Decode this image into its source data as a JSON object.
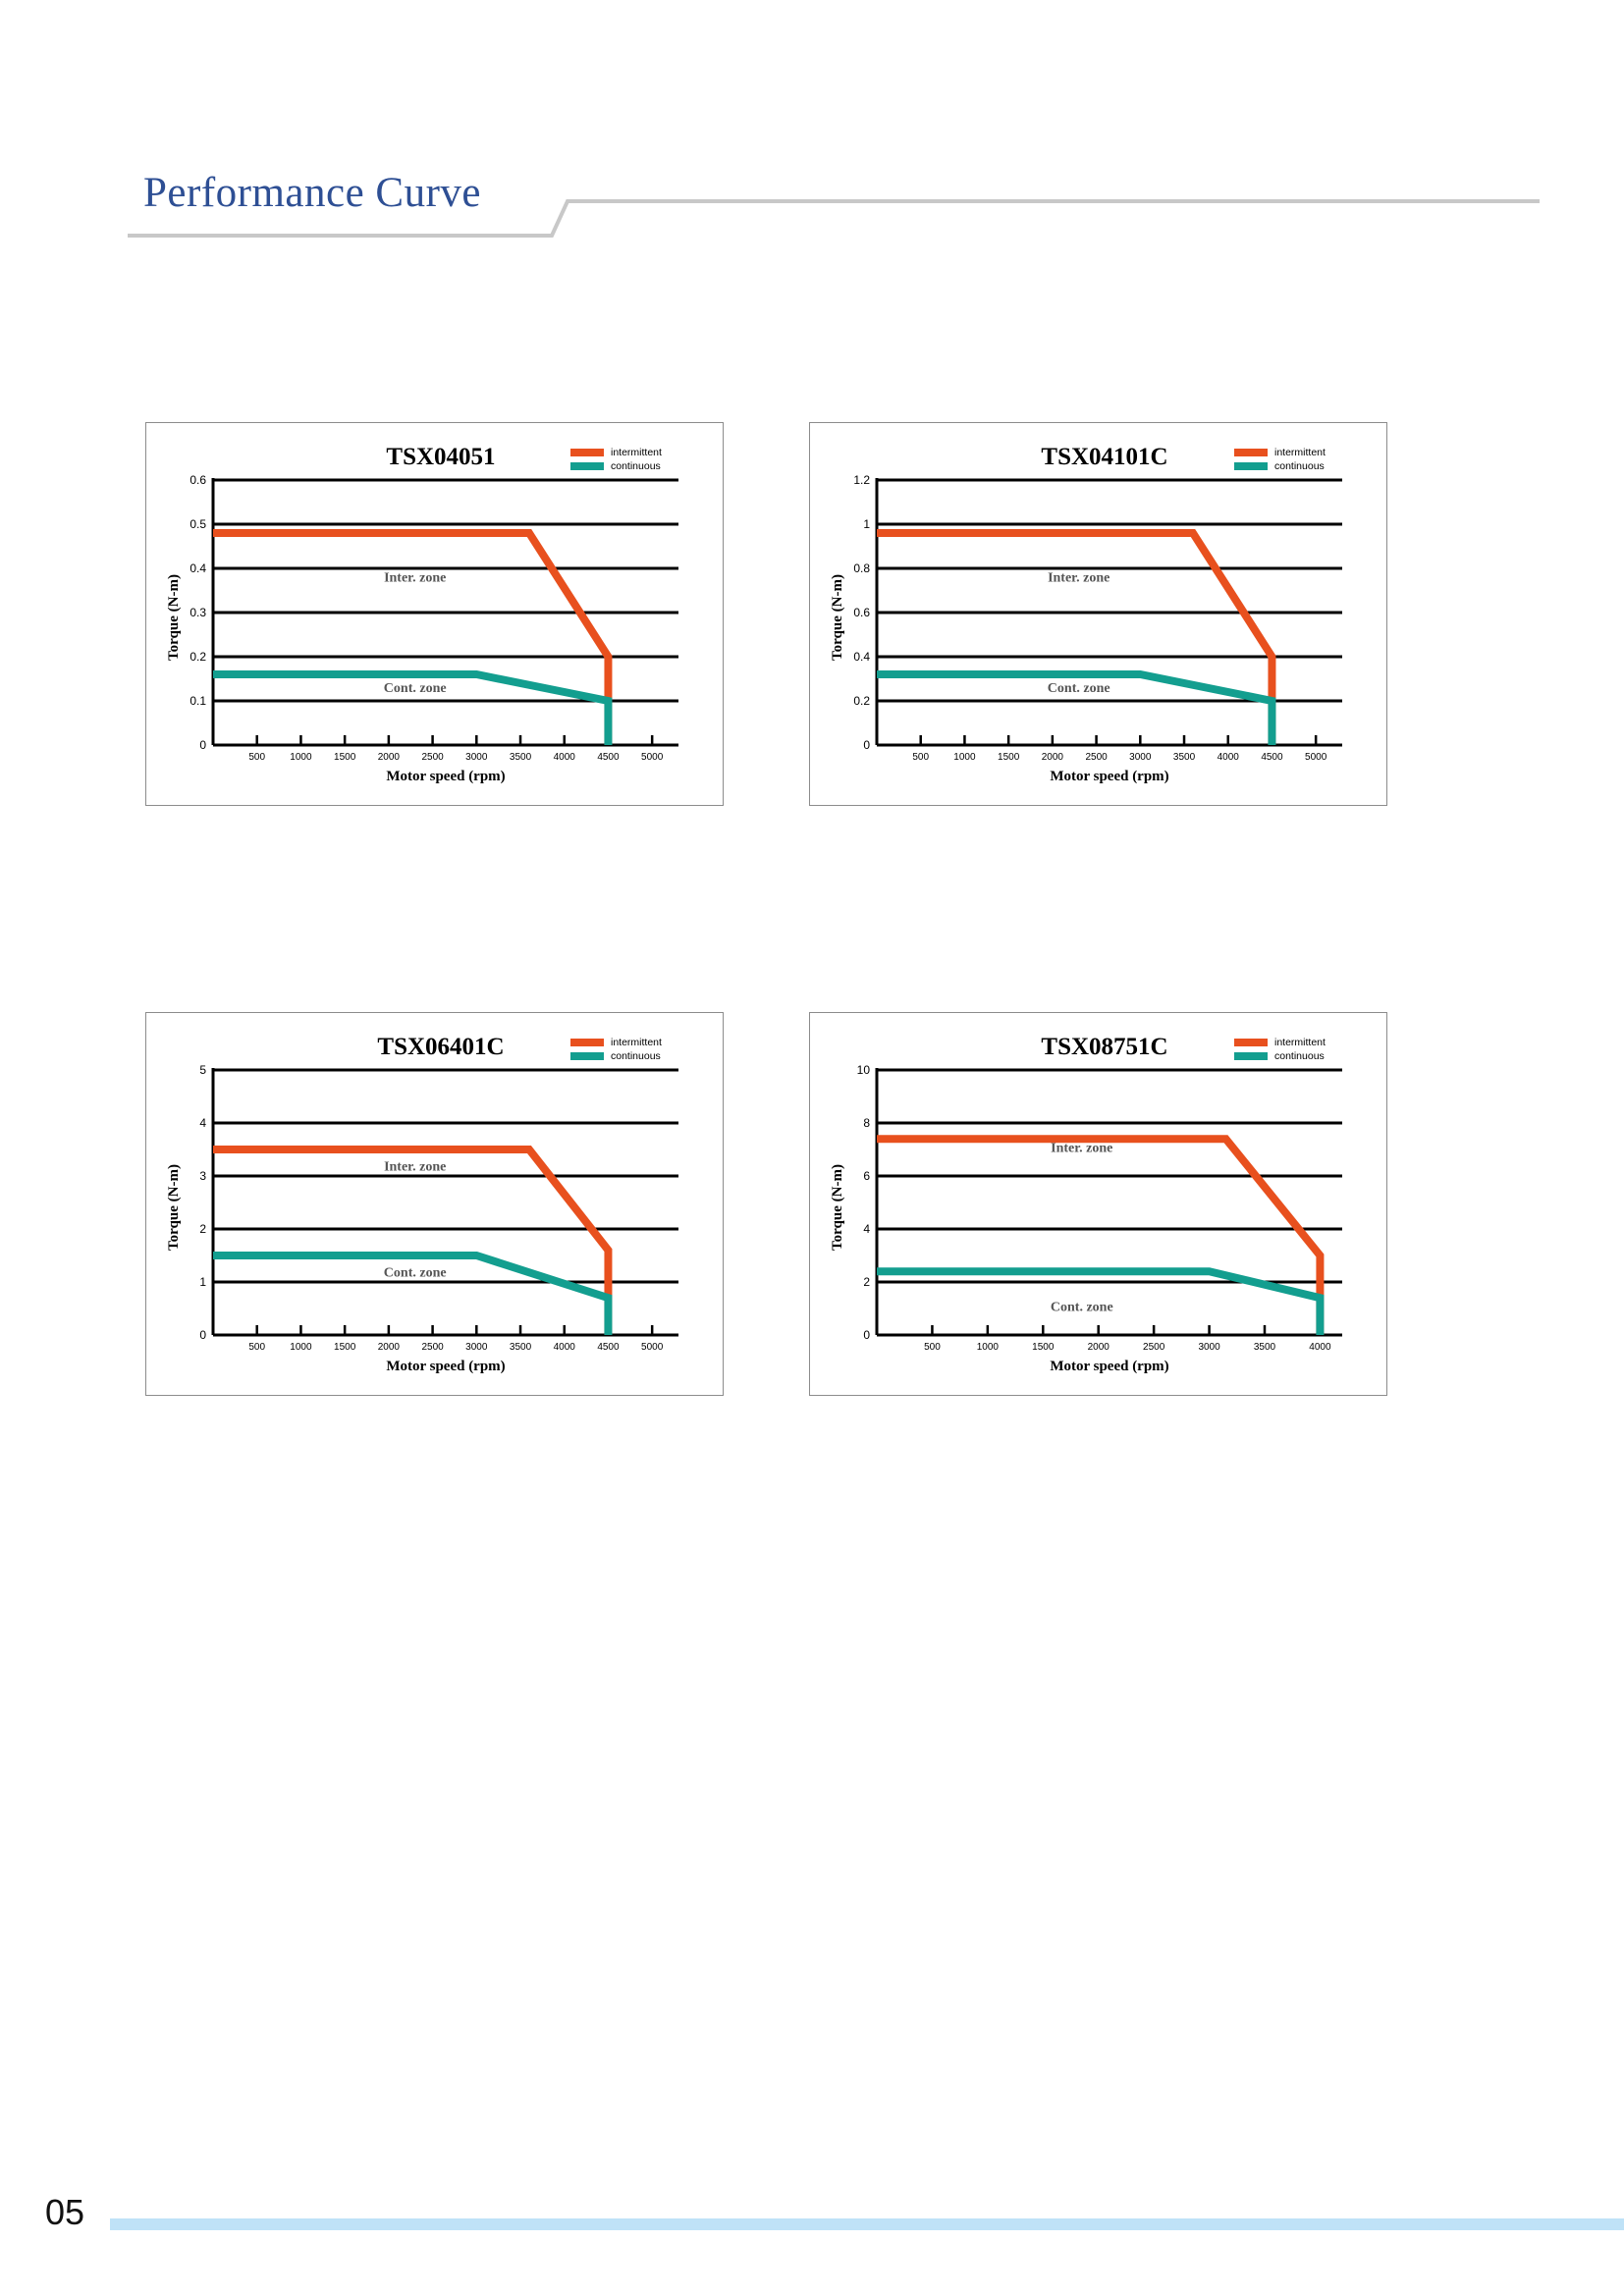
{
  "page": {
    "title": "Performance Curve",
    "page_number": "05",
    "colors": {
      "title": "#2e4f94",
      "intermittent": "#e8501e",
      "continuous": "#139e8f",
      "footer_bar": "#bfe2f7"
    }
  },
  "chart_data": [
    {
      "type": "line",
      "title": "TSX04051",
      "xlabel": "Motor speed (rpm)",
      "ylabel": "Torque (N-m)",
      "xlim": [
        0,
        5300
      ],
      "ylim": [
        0,
        0.6
      ],
      "xticks": [
        500,
        1000,
        1500,
        2000,
        2500,
        3000,
        3500,
        4000,
        4500,
        5000
      ],
      "yticks": [
        0,
        0.1,
        0.2,
        0.3,
        0.4,
        0.5,
        0.6
      ],
      "legend": [
        "intermittent",
        "continuous"
      ],
      "legend_position": "top-right",
      "zone_labels": [
        {
          "text": "Inter. zone",
          "x": 2300,
          "y": 0.37
        },
        {
          "text": "Cont. zone",
          "x": 2300,
          "y": 0.12
        }
      ],
      "series": [
        {
          "name": "intermittent",
          "x": [
            0,
            3600,
            4500,
            4500
          ],
          "y": [
            0.48,
            0.48,
            0.2,
            0
          ]
        },
        {
          "name": "continuous",
          "x": [
            0,
            3000,
            4500,
            4500
          ],
          "y": [
            0.16,
            0.16,
            0.1,
            0
          ]
        }
      ]
    },
    {
      "type": "line",
      "title": "TSX04101C",
      "xlabel": "Motor speed (rpm)",
      "ylabel": "Torque (N-m)",
      "xlim": [
        0,
        5300
      ],
      "ylim": [
        0,
        1.2
      ],
      "xticks": [
        500,
        1000,
        1500,
        2000,
        2500,
        3000,
        3500,
        4000,
        4500,
        5000
      ],
      "yticks": [
        0,
        0.2,
        0.4,
        0.6,
        0.8,
        1,
        1.2
      ],
      "legend": [
        "intermittent",
        "continuous"
      ],
      "legend_position": "top-right",
      "zone_labels": [
        {
          "text": "Inter. zone",
          "x": 2300,
          "y": 0.74
        },
        {
          "text": "Cont. zone",
          "x": 2300,
          "y": 0.24
        }
      ],
      "series": [
        {
          "name": "intermittent",
          "x": [
            0,
            3600,
            4500,
            4500
          ],
          "y": [
            0.96,
            0.96,
            0.4,
            0
          ]
        },
        {
          "name": "continuous",
          "x": [
            0,
            3000,
            4500,
            4500
          ],
          "y": [
            0.32,
            0.32,
            0.2,
            0
          ]
        }
      ]
    },
    {
      "type": "line",
      "title": "TSX06401C",
      "xlabel": "Motor speed (rpm)",
      "ylabel": "Torque (N-m)",
      "xlim": [
        0,
        5300
      ],
      "ylim": [
        0,
        5
      ],
      "xticks": [
        500,
        1000,
        1500,
        2000,
        2500,
        3000,
        3500,
        4000,
        4500,
        5000
      ],
      "yticks": [
        0,
        1,
        2,
        3,
        4,
        5
      ],
      "legend": [
        "intermittent",
        "continuous"
      ],
      "legend_position": "top-right",
      "zone_labels": [
        {
          "text": "Inter. zone",
          "x": 2300,
          "y": 3.1
        },
        {
          "text": "Cont. zone",
          "x": 2300,
          "y": 1.1
        }
      ],
      "series": [
        {
          "name": "intermittent",
          "x": [
            0,
            3600,
            4500,
            4500
          ],
          "y": [
            3.5,
            3.5,
            1.6,
            0
          ]
        },
        {
          "name": "continuous",
          "x": [
            0,
            3000,
            4500,
            4500
          ],
          "y": [
            1.5,
            1.5,
            0.7,
            0
          ]
        }
      ]
    },
    {
      "type": "line",
      "title": "TSX08751C",
      "xlabel": "Motor speed (rpm)",
      "ylabel": "Torque (N-m)",
      "xlim": [
        0,
        4200
      ],
      "ylim": [
        0,
        10
      ],
      "xticks": [
        500,
        1000,
        1500,
        2000,
        2500,
        3000,
        3500,
        4000
      ],
      "yticks": [
        0,
        2,
        4,
        6,
        8,
        10
      ],
      "legend": [
        "intermittent",
        "continuous"
      ],
      "legend_position": "top-right",
      "zone_labels": [
        {
          "text": "Inter. zone",
          "x": 1850,
          "y": 6.9
        },
        {
          "text": "Cont. zone",
          "x": 1850,
          "y": 0.9
        }
      ],
      "series": [
        {
          "name": "intermittent",
          "x": [
            0,
            3150,
            4000,
            4000
          ],
          "y": [
            7.4,
            7.4,
            3,
            0
          ]
        },
        {
          "name": "continuous",
          "x": [
            0,
            3000,
            4000,
            4000
          ],
          "y": [
            2.4,
            2.4,
            1.4,
            0
          ]
        }
      ]
    }
  ]
}
